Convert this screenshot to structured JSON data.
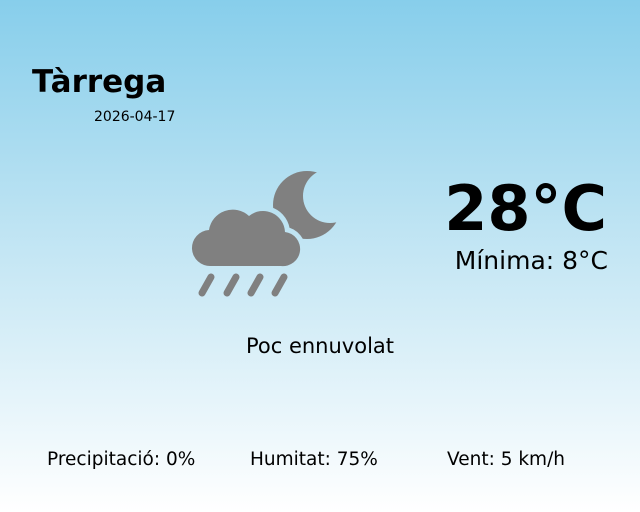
{
  "location": {
    "city": "Tàrrega",
    "date": "2026-04-17"
  },
  "current": {
    "temperature": "28°C",
    "minimum": "Mínima: 8°C",
    "condition": "Poc ennuvolat",
    "icon": "cloud-moon-rain-icon",
    "icon_color": "#808080"
  },
  "stats": {
    "precipitation": "Precipitació: 0%",
    "humidity": "Humitat: 75%",
    "wind": "Vent: 5 km/h"
  },
  "colors": {
    "background_top": "#87ceeb",
    "background_bottom": "#ffffff"
  }
}
